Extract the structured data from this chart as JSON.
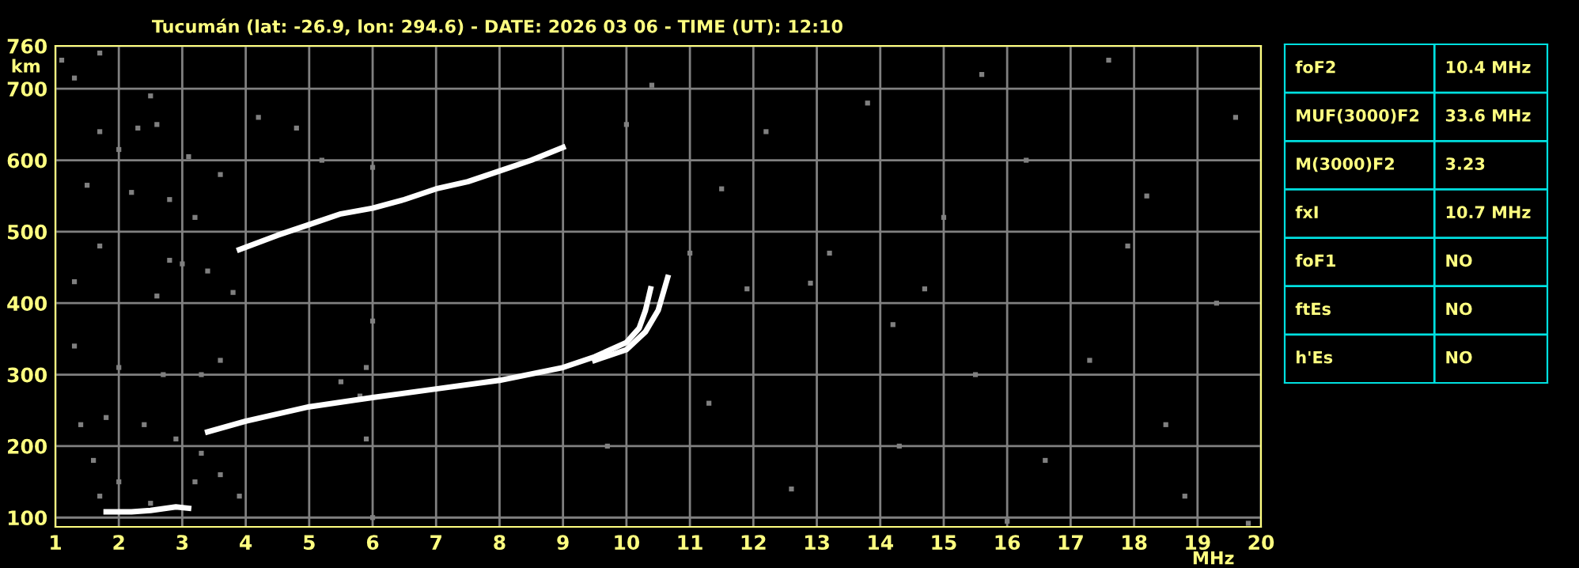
{
  "chart_data": [
    {
      "type": "scatter",
      "title": "Tucumán (lat: -26.9, lon: 294.6) - DATE: 2026 03 06 - TIME (UT): 12:10",
      "xlabel": "MHz",
      "ylabel": "km",
      "xlim": [
        1,
        20
      ],
      "ylim": [
        87,
        760
      ],
      "xticks": [
        1,
        2,
        3,
        4,
        5,
        6,
        7,
        8,
        9,
        10,
        11,
        12,
        13,
        14,
        15,
        16,
        17,
        18,
        19,
        20
      ],
      "yticks": [
        100,
        200,
        300,
        400,
        500,
        600,
        700,
        760
      ],
      "grid": true,
      "legend": false,
      "series": [
        {
          "type": "scatter",
          "color": "#808080",
          "marker": "square",
          "x": [
            1.1,
            1.3,
            1.7,
            1.7,
            2.0,
            2.3,
            2.5,
            2.6,
            1.5,
            2.2,
            2.8,
            3.1,
            3.2,
            3.6,
            1.3,
            1.7,
            2.6,
            3.0,
            3.4,
            3.8,
            2.8,
            1.3,
            2.0,
            2.7,
            3.3,
            3.6,
            1.4,
            1.8,
            2.4,
            2.9,
            3.3,
            3.6,
            1.6,
            1.7,
            2.0,
            2.5,
            3.2,
            3.9,
            4.2,
            4.8,
            5.2,
            6.0,
            5.5,
            5.8,
            6.0,
            5.9,
            6.0,
            5.9,
            9.7,
            10.0,
            10.4,
            11.0,
            11.9,
            12.9,
            13.2,
            14.2,
            15.0,
            16.3,
            17.6,
            18.2,
            19.6,
            11.3,
            12.6,
            14.3,
            15.5,
            16.6,
            17.3,
            18.5,
            19.3,
            13.8,
            15.6,
            17.9,
            16.0,
            19.8,
            12.2,
            11.5,
            18.8,
            14.7
          ],
          "values": [
            740,
            715,
            750,
            640,
            615,
            645,
            690,
            650,
            565,
            555,
            545,
            605,
            520,
            580,
            430,
            480,
            410,
            455,
            445,
            415,
            460,
            340,
            310,
            300,
            300,
            320,
            230,
            240,
            230,
            210,
            190,
            160,
            180,
            130,
            150,
            120,
            150,
            130,
            660,
            645,
            600,
            590,
            290,
            270,
            375,
            310,
            100,
            210,
            200,
            650,
            705,
            470,
            420,
            428,
            470,
            370,
            520,
            600,
            740,
            550,
            660,
            260,
            140,
            200,
            300,
            180,
            320,
            230,
            400,
            680,
            720,
            480,
            95,
            92,
            640,
            560,
            130,
            420
          ]
        },
        {
          "type": "line",
          "color": "#ffffff",
          "marker": "none",
          "x": [
            1.8,
            2.2,
            2.5,
            2.9,
            3.1
          ],
          "values": [
            108,
            108,
            110,
            115,
            113
          ]
        },
        {
          "type": "line",
          "color": "#ffffff",
          "marker": "none",
          "x": [
            3.9,
            4.5,
            5.0,
            5.5,
            6.0,
            6.5,
            7.0,
            7.5,
            8.0,
            8.5,
            9.0
          ],
          "values": [
            475,
            495,
            510,
            525,
            533,
            545,
            560,
            570,
            585,
            600,
            618
          ]
        },
        {
          "type": "line",
          "color": "#ffffff",
          "marker": "none",
          "x": [
            3.4,
            4.0,
            5.0,
            6.0,
            7.0,
            8.0,
            9.0,
            9.5,
            10.0,
            10.2,
            10.3,
            10.38
          ],
          "values": [
            220,
            235,
            255,
            268,
            280,
            292,
            310,
            325,
            345,
            365,
            390,
            420
          ]
        },
        {
          "type": "line",
          "color": "#ffffff",
          "marker": "none",
          "x": [
            9.5,
            10.0,
            10.3,
            10.5,
            10.65
          ],
          "values": [
            320,
            335,
            360,
            390,
            436
          ]
        }
      ]
    },
    {
      "type": "other",
      "annotations": [
        "foF2",
        "10.4 MHz",
        "MUF(3000)F2",
        "33.6 MHz",
        "M(3000)F2",
        "3.23",
        "fxI",
        "10.7 MHz",
        "foF1",
        "NO",
        "ftEs",
        "NO",
        "h'Es",
        "NO"
      ]
    }
  ]
}
